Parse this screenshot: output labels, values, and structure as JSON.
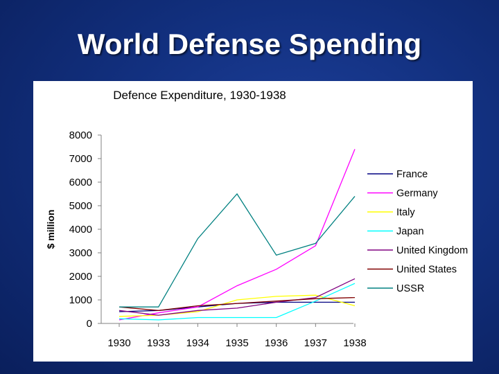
{
  "slide": {
    "title": "World Defense Spending"
  },
  "chart_data": {
    "type": "line",
    "title": "Defence Expenditure, 1930-1938",
    "xlabel": "",
    "ylabel": "$ million",
    "categories": [
      "1930",
      "1933",
      "1934",
      "1935",
      "1936",
      "1937",
      "1938"
    ],
    "ylim": [
      0,
      8000
    ],
    "yticks": [
      "8000",
      "7000",
      "6000",
      "5000",
      "4000",
      "3000",
      "2000",
      "1000",
      "0"
    ],
    "grid": false,
    "legend_position": "right",
    "series": [
      {
        "name": "France",
        "color": "#000080",
        "values": [
          500,
          550,
          700,
          850,
          900,
          900,
          900
        ]
      },
      {
        "name": "Germany",
        "color": "#ff00ff",
        "values": [
          150,
          450,
          700,
          1600,
          2300,
          3300,
          7400
        ]
      },
      {
        "name": "Italy",
        "color": "#ffff00",
        "values": [
          300,
          350,
          500,
          1000,
          1150,
          1200,
          750
        ]
      },
      {
        "name": "Japan",
        "color": "#00ffff",
        "values": [
          200,
          150,
          250,
          250,
          250,
          950,
          1700
        ]
      },
      {
        "name": "United Kingdom",
        "color": "#800080",
        "values": [
          550,
          350,
          550,
          650,
          900,
          1100,
          1900
        ]
      },
      {
        "name": "United States",
        "color": "#800000",
        "values": [
          700,
          550,
          750,
          850,
          950,
          1050,
          1100
        ]
      },
      {
        "name": "USSR",
        "color": "#008080",
        "values": [
          700,
          700,
          3600,
          5500,
          2900,
          3400,
          5400
        ]
      }
    ]
  }
}
